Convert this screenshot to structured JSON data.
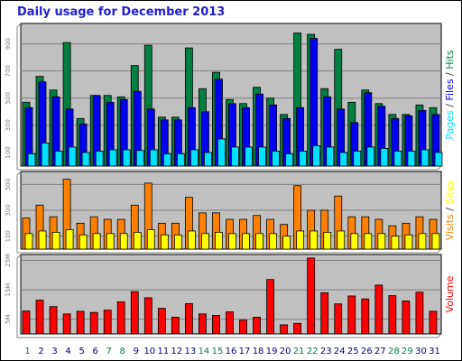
{
  "title": "Daily usage for December 2013",
  "colors": {
    "pages": "#00e0ff",
    "files": "#0000f0",
    "hits": "#008040",
    "visits": "#ff8000",
    "sites": "#ffff00",
    "volume": "#ff0000",
    "weekend_label": "#008040",
    "plot_bg": "#c0c0c0"
  },
  "chart_data": [
    {
      "type": "bar",
      "name": "hits-files-pages",
      "ylabel_parts": [
        "Pages",
        " / ",
        "Files",
        " / ",
        "Hits"
      ],
      "ytick_labels": [
        "100",
        "300",
        "500",
        "700",
        "900"
      ],
      "ylim": [
        0,
        1050
      ],
      "categories": [
        "1",
        "2",
        "3",
        "4",
        "5",
        "6",
        "7",
        "8",
        "9",
        "10",
        "11",
        "12",
        "13",
        "14",
        "15",
        "16",
        "17",
        "18",
        "19",
        "20",
        "21",
        "22",
        "23",
        "24",
        "25",
        "26",
        "27",
        "28",
        "29",
        "30",
        "31"
      ],
      "series": [
        {
          "name": "Hits",
          "values": [
            470,
            660,
            560,
            910,
            350,
            520,
            520,
            510,
            740,
            890,
            360,
            360,
            870,
            570,
            690,
            490,
            460,
            580,
            500,
            380,
            980,
            970,
            570,
            860,
            470,
            560,
            460,
            380,
            380,
            450,
            430
          ]
        },
        {
          "name": "Files",
          "values": [
            430,
            620,
            510,
            420,
            310,
            520,
            470,
            490,
            550,
            420,
            340,
            340,
            430,
            400,
            640,
            460,
            430,
            530,
            450,
            350,
            430,
            940,
            510,
            420,
            320,
            540,
            440,
            350,
            370,
            410,
            380
          ]
        },
        {
          "name": "Pages",
          "values": [
            90,
            170,
            110,
            140,
            100,
            110,
            120,
            120,
            115,
            120,
            90,
            90,
            120,
            100,
            200,
            140,
            140,
            140,
            110,
            90,
            110,
            150,
            140,
            100,
            110,
            140,
            130,
            110,
            110,
            120,
            100
          ]
        }
      ]
    },
    {
      "type": "bar",
      "name": "visits-sites",
      "ylabel_parts": [
        "Visits",
        " / ",
        "Sites"
      ],
      "ytick_labels": [
        "100",
        "300",
        "500"
      ],
      "ylim": [
        0,
        600
      ],
      "categories": [
        "1",
        "2",
        "3",
        "4",
        "5",
        "6",
        "7",
        "8",
        "9",
        "10",
        "11",
        "12",
        "13",
        "14",
        "15",
        "16",
        "17",
        "18",
        "19",
        "20",
        "21",
        "22",
        "23",
        "24",
        "25",
        "26",
        "27",
        "28",
        "29",
        "30",
        "31"
      ],
      "series": [
        {
          "name": "Visits",
          "values": [
            240,
            340,
            250,
            540,
            200,
            250,
            230,
            230,
            340,
            510,
            200,
            200,
            400,
            280,
            280,
            230,
            230,
            260,
            230,
            190,
            490,
            300,
            300,
            410,
            250,
            250,
            230,
            180,
            200,
            250,
            230
          ]
        },
        {
          "name": "Sites",
          "values": [
            120,
            140,
            130,
            150,
            110,
            120,
            120,
            120,
            130,
            150,
            110,
            110,
            140,
            120,
            130,
            120,
            120,
            120,
            120,
            100,
            140,
            140,
            130,
            140,
            120,
            120,
            120,
            100,
            110,
            120,
            120
          ]
        }
      ]
    },
    {
      "type": "bar",
      "name": "volume",
      "ylabel_parts": [
        "Volume"
      ],
      "ytick_labels": [
        "5M",
        "15M",
        "25M"
      ],
      "ylim": [
        0,
        27
      ],
      "categories": [
        "1",
        "2",
        "3",
        "4",
        "5",
        "6",
        "7",
        "8",
        "9",
        "10",
        "11",
        "12",
        "13",
        "14",
        "15",
        "16",
        "17",
        "18",
        "19",
        "20",
        "21",
        "22",
        "23",
        "24",
        "25",
        "26",
        "27",
        "28",
        "29",
        "30",
        "31"
      ],
      "series": [
        {
          "name": "Volume",
          "values": [
            7.8,
            11.5,
            9.3,
            6.8,
            7.7,
            7.3,
            8.1,
            10.9,
            14.4,
            12.3,
            8.7,
            5.7,
            10.3,
            6.8,
            6.3,
            7.5,
            4.7,
            5.7,
            18.5,
            3.1,
            3.6,
            25.8,
            14.0,
            10.2,
            12.9,
            11.9,
            16.6,
            13.0,
            11.2,
            14.2,
            7.7
          ]
        }
      ]
    }
  ],
  "weekend_days": [
    "1",
    "7",
    "8",
    "14",
    "15",
    "21",
    "22",
    "28",
    "29"
  ]
}
